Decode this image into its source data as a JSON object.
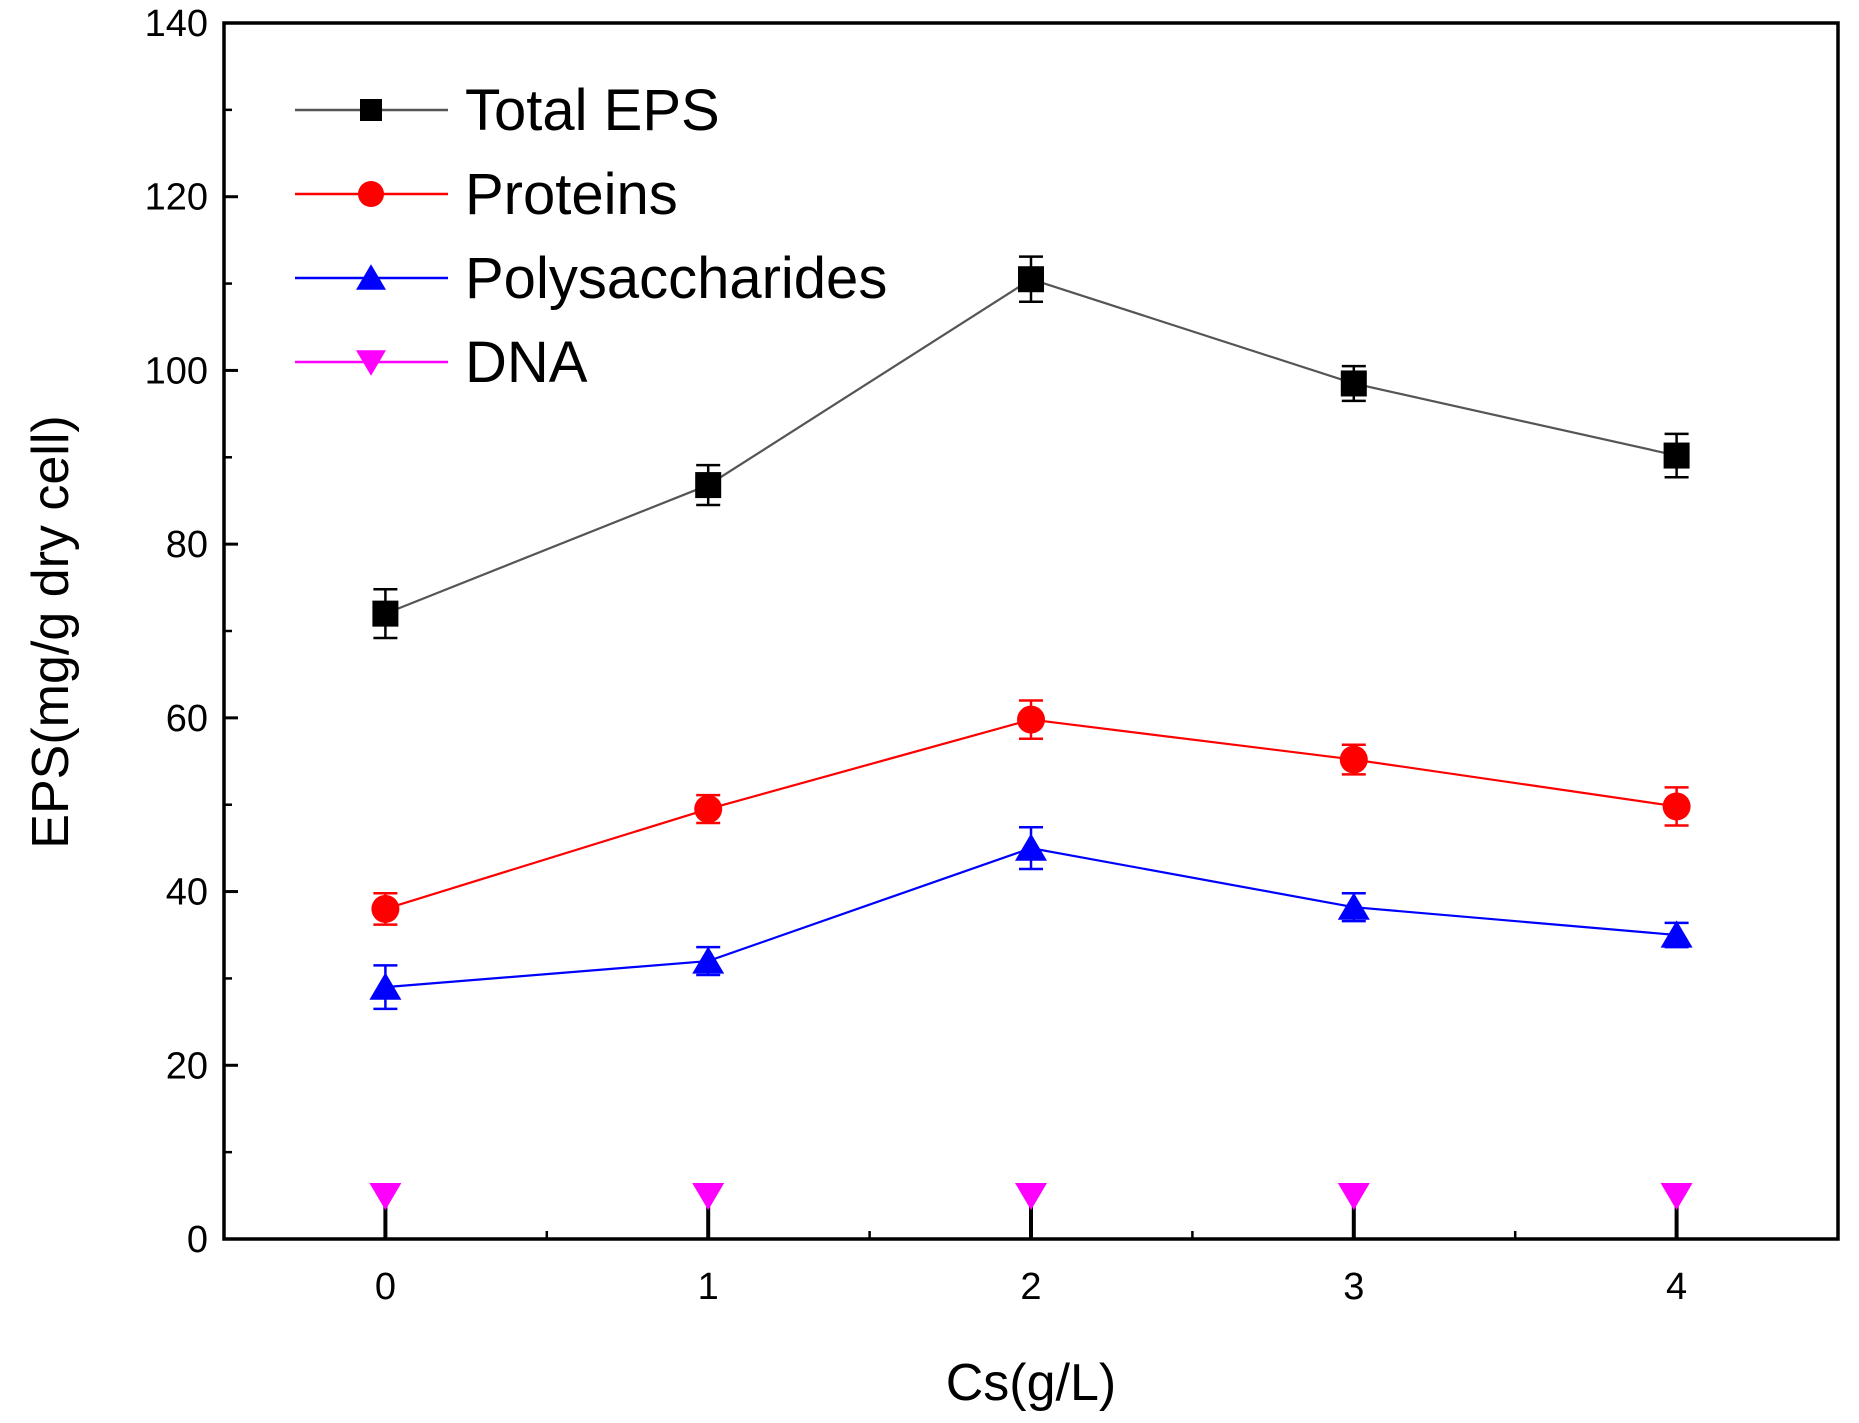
{
  "chart_data": {
    "type": "line",
    "title": "",
    "xlabel": "Cs(g/L)",
    "ylabel": "EPS(mg/g dry cell)",
    "x": [
      0,
      1,
      2,
      3,
      4
    ],
    "xlim": [
      -0.5,
      4.5
    ],
    "ylim": [
      0,
      140
    ],
    "xticks": [
      "0",
      "1",
      "2",
      "3",
      "4"
    ],
    "yticks": [
      "0",
      "20",
      "40",
      "60",
      "80",
      "100",
      "120",
      "140"
    ],
    "grid": false,
    "legend_position": "top-left",
    "series": [
      {
        "name": "Total EPS",
        "marker": "square",
        "color": "#000000",
        "line_color": "#555555",
        "values": [
          72,
          86.8,
          110.5,
          98.5,
          90.2
        ],
        "errors": [
          2.8,
          2.3,
          2.6,
          2.0,
          2.5
        ]
      },
      {
        "name": "Proteins",
        "marker": "circle",
        "color": "#ff0000",
        "line_color": "#ff0000",
        "values": [
          38,
          49.5,
          59.8,
          55.2,
          49.8
        ],
        "errors": [
          1.8,
          1.6,
          2.2,
          1.7,
          2.2
        ]
      },
      {
        "name": "Polysaccharides",
        "marker": "triangle-up",
        "color": "#0000ff",
        "line_color": "#0000ff",
        "values": [
          29,
          32,
          45,
          38.2,
          35
        ],
        "errors": [
          2.5,
          1.6,
          2.4,
          1.6,
          1.4
        ]
      },
      {
        "name": "DNA",
        "marker": "triangle-down",
        "color": "#ff00ff",
        "line_color": "#ff00ff",
        "values": [
          5,
          5,
          5,
          5,
          5
        ],
        "errors": [
          0,
          0,
          0,
          0,
          0
        ]
      }
    ]
  }
}
